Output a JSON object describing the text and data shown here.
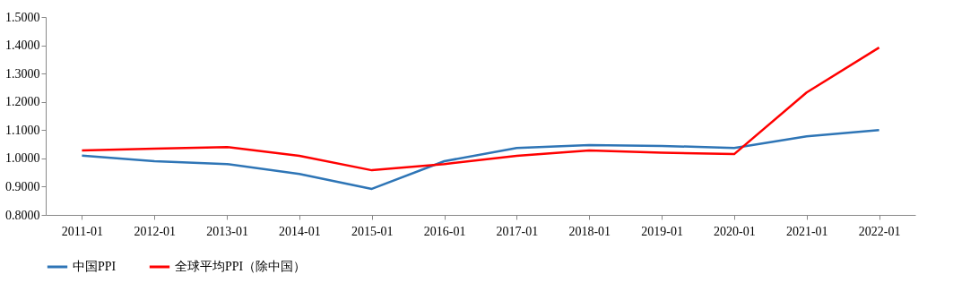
{
  "chart_data": {
    "type": "line",
    "categories": [
      "2011-01",
      "2012-01",
      "2013-01",
      "2014-01",
      "2015-01",
      "2016-01",
      "2017-01",
      "2018-01",
      "2019-01",
      "2020-01",
      "2021-01",
      "2022-01"
    ],
    "series": [
      {
        "name": "中国PPI",
        "color": "#2e75b6",
        "values": [
          1.01,
          0.99,
          0.98,
          0.945,
          0.892,
          0.99,
          1.037,
          1.047,
          1.044,
          1.037,
          1.078,
          1.1
        ]
      },
      {
        "name": "全球平均PPI（除中国）",
        "color": "#ff0000",
        "values": [
          1.028,
          1.034,
          1.04,
          1.009,
          0.958,
          0.98,
          1.009,
          1.028,
          1.02,
          1.015,
          1.233,
          1.392
        ]
      }
    ],
    "ylim": [
      0.8,
      1.5
    ],
    "yticks": [
      {
        "value": 0.8,
        "label": "0.8000"
      },
      {
        "value": 0.9,
        "label": "0.9000"
      },
      {
        "value": 1.0,
        "label": "1.0000"
      },
      {
        "value": 1.1,
        "label": "1.1000"
      },
      {
        "value": 1.2,
        "label": "1.2000"
      },
      {
        "value": 1.3,
        "label": "1.3000"
      },
      {
        "value": 1.4,
        "label": "1.4000"
      },
      {
        "value": 1.5,
        "label": "1.5000"
      }
    ],
    "legend": "bottom",
    "grid": false,
    "marker": "none",
    "line_style": "solid"
  }
}
